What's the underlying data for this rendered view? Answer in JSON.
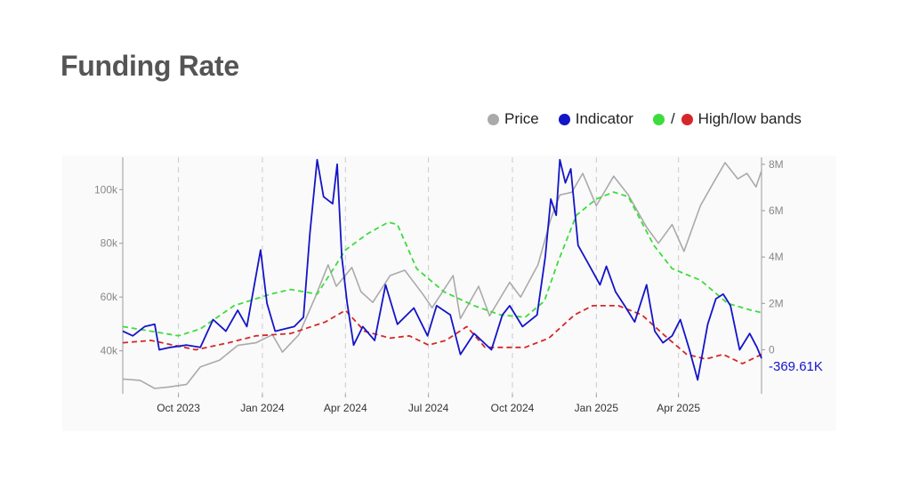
{
  "page": {
    "title": "Funding Rate"
  },
  "legend": {
    "price_label": "Price",
    "indicator_label": "Indicator",
    "bands_label": "High/low bands",
    "bands_separator": "/"
  },
  "colors": {
    "price": "#aaaaaa",
    "indicator": "#1414c8",
    "high_band": "#3ddc3d",
    "low_band": "#d62728",
    "gridline": "#cccccc",
    "title": "#555555"
  },
  "chart_data": {
    "type": "line",
    "title": "Funding Rate",
    "xlabel": "",
    "ylabel_left": "",
    "ylabel_right": "",
    "x_range": [
      "2023-08-01",
      "2025-07-01"
    ],
    "x_ticks": [
      {
        "date": "2023-10-01",
        "label": "Oct 2023"
      },
      {
        "date": "2024-01-01",
        "label": "Jan 2024"
      },
      {
        "date": "2024-04-01",
        "label": "Apr 2024"
      },
      {
        "date": "2024-07-01",
        "label": "Jul 2024"
      },
      {
        "date": "2024-10-01",
        "label": "Oct 2024"
      },
      {
        "date": "2025-01-01",
        "label": "Jan 2025"
      },
      {
        "date": "2025-04-01",
        "label": "Apr 2025"
      }
    ],
    "y_left": {
      "range": [
        24000,
        112000
      ],
      "ticks": [
        40000,
        60000,
        80000,
        100000
      ],
      "tick_labels": [
        "40k",
        "60k",
        "80k",
        "100k"
      ]
    },
    "y_right": {
      "range": [
        -1900000,
        8300000
      ],
      "ticks": [
        0,
        2000000,
        4000000,
        6000000,
        8000000
      ],
      "tick_labels": [
        "0",
        "2M",
        "4M",
        "6M",
        "8M"
      ]
    },
    "grid": "vertical dashed at month ticks",
    "legend_position": "top-right",
    "last_value_label": "-369.61K",
    "series": [
      {
        "name": "Price",
        "axis": "left",
        "style": "solid",
        "points": [
          [
            "2023-08-01",
            29500
          ],
          [
            "2023-08-20",
            29000
          ],
          [
            "2023-09-05",
            26000
          ],
          [
            "2023-09-20",
            26500
          ],
          [
            "2023-10-10",
            27500
          ],
          [
            "2023-10-25",
            34000
          ],
          [
            "2023-11-15",
            36500
          ],
          [
            "2023-12-05",
            42000
          ],
          [
            "2023-12-25",
            43000
          ],
          [
            "2024-01-12",
            46000
          ],
          [
            "2024-01-23",
            39500
          ],
          [
            "2024-02-10",
            46000
          ],
          [
            "2024-02-28",
            60000
          ],
          [
            "2024-03-13",
            72000
          ],
          [
            "2024-03-22",
            64000
          ],
          [
            "2024-04-08",
            71000
          ],
          [
            "2024-04-18",
            62000
          ],
          [
            "2024-05-01",
            58000
          ],
          [
            "2024-05-20",
            68000
          ],
          [
            "2024-06-05",
            70000
          ],
          [
            "2024-06-25",
            61000
          ],
          [
            "2024-07-05",
            56000
          ],
          [
            "2024-07-28",
            68000
          ],
          [
            "2024-08-05",
            52000
          ],
          [
            "2024-08-25",
            64000
          ],
          [
            "2024-09-06",
            53000
          ],
          [
            "2024-09-28",
            65500
          ],
          [
            "2024-10-10",
            60000
          ],
          [
            "2024-10-29",
            72000
          ],
          [
            "2024-11-12",
            89000
          ],
          [
            "2024-11-22",
            98000
          ],
          [
            "2024-12-05",
            99000
          ],
          [
            "2024-12-17",
            106000
          ],
          [
            "2025-01-01",
            94000
          ],
          [
            "2025-01-20",
            105000
          ],
          [
            "2025-02-05",
            98000
          ],
          [
            "2025-02-25",
            86000
          ],
          [
            "2025-03-10",
            80000
          ],
          [
            "2025-03-25",
            87000
          ],
          [
            "2025-04-07",
            77000
          ],
          [
            "2025-04-25",
            94000
          ],
          [
            "2025-05-10",
            103000
          ],
          [
            "2025-05-22",
            110000
          ],
          [
            "2025-06-05",
            104000
          ],
          [
            "2025-06-15",
            106000
          ],
          [
            "2025-06-25",
            101000
          ],
          [
            "2025-07-01",
            107000
          ]
        ]
      },
      {
        "name": "Indicator",
        "axis": "right",
        "style": "solid",
        "points": [
          [
            "2023-08-01",
            800000
          ],
          [
            "2023-08-12",
            600000
          ],
          [
            "2023-08-25",
            1000000
          ],
          [
            "2023-09-05",
            1100000
          ],
          [
            "2023-09-10",
            0
          ],
          [
            "2023-09-22",
            100000
          ],
          [
            "2023-10-10",
            200000
          ],
          [
            "2023-10-25",
            100000
          ],
          [
            "2023-11-08",
            1300000
          ],
          [
            "2023-11-22",
            800000
          ],
          [
            "2023-12-05",
            1700000
          ],
          [
            "2023-12-15",
            1000000
          ],
          [
            "2023-12-30",
            4300000
          ],
          [
            "2024-01-06",
            2000000
          ],
          [
            "2024-01-15",
            800000
          ],
          [
            "2024-02-05",
            1000000
          ],
          [
            "2024-02-15",
            1400000
          ],
          [
            "2024-02-22",
            5000000
          ],
          [
            "2024-03-01",
            8200000
          ],
          [
            "2024-03-08",
            6600000
          ],
          [
            "2024-03-18",
            6300000
          ],
          [
            "2024-03-23",
            8000000
          ],
          [
            "2024-03-28",
            4000000
          ],
          [
            "2024-04-03",
            2000000
          ],
          [
            "2024-04-10",
            200000
          ],
          [
            "2024-04-20",
            1000000
          ],
          [
            "2024-05-03",
            400000
          ],
          [
            "2024-05-15",
            2800000
          ],
          [
            "2024-05-28",
            1100000
          ],
          [
            "2024-06-15",
            1800000
          ],
          [
            "2024-06-30",
            600000
          ],
          [
            "2024-07-10",
            1900000
          ],
          [
            "2024-07-25",
            1500000
          ],
          [
            "2024-08-05",
            -200000
          ],
          [
            "2024-08-20",
            700000
          ],
          [
            "2024-09-08",
            0
          ],
          [
            "2024-09-20",
            1500000
          ],
          [
            "2024-09-28",
            1900000
          ],
          [
            "2024-10-12",
            1000000
          ],
          [
            "2024-10-28",
            1500000
          ],
          [
            "2024-11-06",
            4000000
          ],
          [
            "2024-11-12",
            6500000
          ],
          [
            "2024-11-18",
            5800000
          ],
          [
            "2024-11-22",
            8200000
          ],
          [
            "2024-11-28",
            7200000
          ],
          [
            "2024-12-04",
            7800000
          ],
          [
            "2024-12-12",
            4500000
          ],
          [
            "2024-12-22",
            3800000
          ],
          [
            "2025-01-05",
            2800000
          ],
          [
            "2025-01-12",
            3600000
          ],
          [
            "2025-01-22",
            2500000
          ],
          [
            "2025-02-01",
            1900000
          ],
          [
            "2025-02-12",
            1200000
          ],
          [
            "2025-02-25",
            2800000
          ],
          [
            "2025-03-06",
            800000
          ],
          [
            "2025-03-15",
            300000
          ],
          [
            "2025-03-25",
            600000
          ],
          [
            "2025-04-03",
            1300000
          ],
          [
            "2025-04-13",
            0
          ],
          [
            "2025-04-22",
            -1300000
          ],
          [
            "2025-05-03",
            1100000
          ],
          [
            "2025-05-12",
            2200000
          ],
          [
            "2025-05-20",
            2400000
          ],
          [
            "2025-05-28",
            1900000
          ],
          [
            "2025-06-07",
            0
          ],
          [
            "2025-06-18",
            700000
          ],
          [
            "2025-06-26",
            100000
          ],
          [
            "2025-07-01",
            -369610
          ]
        ]
      },
      {
        "name": "High band",
        "axis": "right",
        "style": "dashed",
        "points": [
          [
            "2023-08-01",
            1000000
          ],
          [
            "2023-09-01",
            800000
          ],
          [
            "2023-10-01",
            600000
          ],
          [
            "2023-10-25",
            900000
          ],
          [
            "2023-12-01",
            1900000
          ],
          [
            "2024-01-10",
            2400000
          ],
          [
            "2024-02-01",
            2600000
          ],
          [
            "2024-03-01",
            2400000
          ],
          [
            "2024-04-01",
            4300000
          ],
          [
            "2024-04-25",
            5000000
          ],
          [
            "2024-05-18",
            5500000
          ],
          [
            "2024-05-28",
            5400000
          ],
          [
            "2024-06-18",
            3500000
          ],
          [
            "2024-07-18",
            2500000
          ],
          [
            "2024-08-20",
            1900000
          ],
          [
            "2024-09-18",
            1500000
          ],
          [
            "2024-10-15",
            1400000
          ],
          [
            "2024-11-05",
            2100000
          ],
          [
            "2024-11-20",
            3800000
          ],
          [
            "2024-12-10",
            5800000
          ],
          [
            "2025-01-01",
            6500000
          ],
          [
            "2025-01-20",
            6800000
          ],
          [
            "2025-02-05",
            6600000
          ],
          [
            "2025-03-05",
            4500000
          ],
          [
            "2025-03-25",
            3500000
          ],
          [
            "2025-04-25",
            3000000
          ],
          [
            "2025-05-25",
            2000000
          ],
          [
            "2025-06-20",
            1700000
          ],
          [
            "2025-07-01",
            1600000
          ]
        ]
      },
      {
        "name": "Low band",
        "axis": "right",
        "style": "dashed",
        "points": [
          [
            "2023-08-01",
            300000
          ],
          [
            "2023-09-01",
            400000
          ],
          [
            "2023-09-25",
            200000
          ],
          [
            "2023-10-20",
            0
          ],
          [
            "2023-11-25",
            300000
          ],
          [
            "2023-12-25",
            600000
          ],
          [
            "2024-02-01",
            700000
          ],
          [
            "2024-03-10",
            1200000
          ],
          [
            "2024-04-01",
            1700000
          ],
          [
            "2024-04-22",
            800000
          ],
          [
            "2024-05-20",
            500000
          ],
          [
            "2024-06-10",
            600000
          ],
          [
            "2024-07-01",
            200000
          ],
          [
            "2024-07-20",
            400000
          ],
          [
            "2024-08-12",
            1000000
          ],
          [
            "2024-09-01",
            100000
          ],
          [
            "2024-10-15",
            100000
          ],
          [
            "2024-11-10",
            500000
          ],
          [
            "2024-12-08",
            1500000
          ],
          [
            "2024-12-28",
            1900000
          ],
          [
            "2025-01-25",
            1900000
          ],
          [
            "2025-02-20",
            1500000
          ],
          [
            "2025-03-20",
            500000
          ],
          [
            "2025-04-10",
            -200000
          ],
          [
            "2025-05-01",
            -400000
          ],
          [
            "2025-05-20",
            -200000
          ],
          [
            "2025-06-10",
            -600000
          ],
          [
            "2025-07-01",
            -200000
          ]
        ]
      }
    ]
  }
}
